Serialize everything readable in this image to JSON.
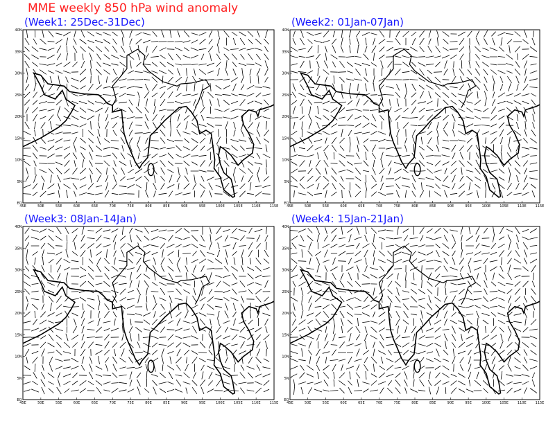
{
  "title": "MME weekly 850 hPa wind anomaly",
  "panels": [
    {
      "title": "(Week1: 25Dec-31Dec)"
    },
    {
      "title": "(Week2: 01Jan-07Jan)"
    },
    {
      "title": "(Week3: 08Jan-14Jan)"
    },
    {
      "title": "(Week4: 15Jan-21Jan)"
    }
  ],
  "lon_labels": [
    "45E",
    "50E",
    "55E",
    "60E",
    "65E",
    "70E",
    "75E",
    "80E",
    "85E",
    "90E",
    "95E",
    "100E",
    "105E",
    "110E",
    "115E"
  ],
  "lat_labels": [
    "EQ",
    "5N",
    "10N",
    "15N",
    "20N",
    "25N",
    "30N",
    "35N",
    "40N"
  ]
}
